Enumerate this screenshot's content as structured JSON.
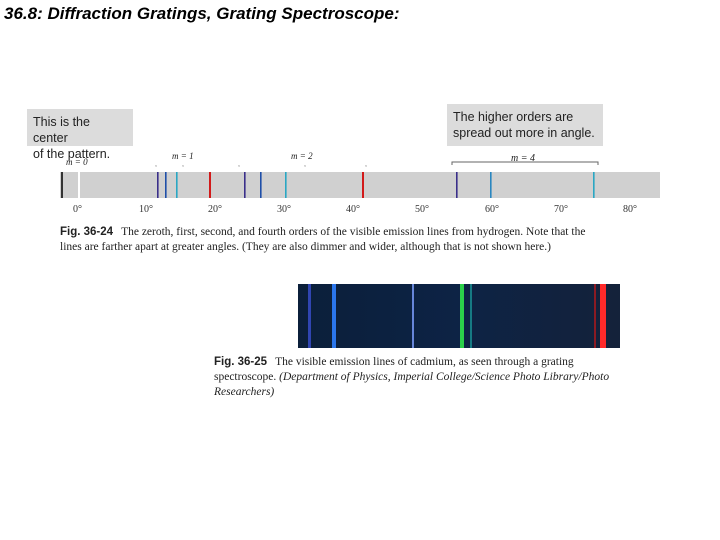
{
  "page": {
    "title": "36.8: Diffraction Gratings, Grating Spectroscope:"
  },
  "figure_36_24": {
    "callout_left_line1": "This is the center",
    "callout_left_line2": "of the pattern.",
    "callout_right_line1": "The higher orders are",
    "callout_right_line2": "spread out more in angle.",
    "order_labels": [
      "m = 0",
      "m = 1",
      "m = 2",
      "m = 4"
    ],
    "axis_ticks": [
      "0°",
      "10°",
      "20°",
      "30°",
      "40°",
      "50°",
      "60°",
      "70°",
      "80°"
    ],
    "caption_label": "Fig. 36-24",
    "caption_text_line1": "The zeroth, first, second, and fourth orders of the visible emission lines from hydrogen. Note that the",
    "caption_text_line2": "lines are farther apart at greater angles. (They are also dimmer and wider, although that is not shown here.)",
    "line_colors": {
      "violet": "#3a2f8a",
      "blue": "#1f4fa8",
      "cyan": "#2aa7c4",
      "red": "#d21a1a",
      "center": "#333333"
    }
  },
  "figure_36_25": {
    "caption_label": "Fig. 36-25",
    "caption_text_line1": "The visible emission lines of cadmium, as seen through a grating",
    "caption_text_line2_normal": "spectroscope.",
    "caption_text_line2_italic": "(Department of Physics, Imperial College/Science Photo Library/Photo",
    "caption_text_line3_italic": "Researchers)"
  }
}
